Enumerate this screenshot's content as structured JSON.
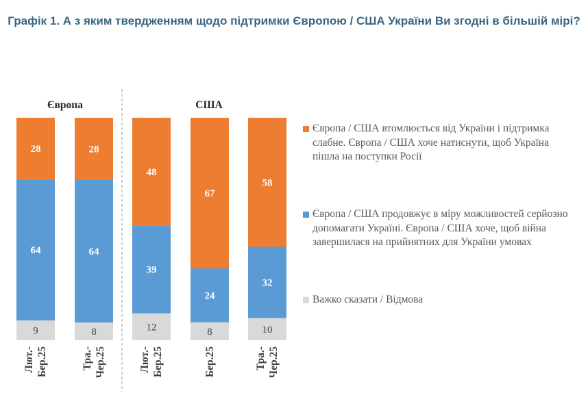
{
  "chart_data": {
    "type": "bar",
    "stacked": true,
    "title": "Графік 1. А з яким твердженням щодо підтримки Європою / США України Ви згодні в більшій мірі?",
    "groups": [
      {
        "label": "Європа",
        "categories": [
          "Лют.-Бер.25",
          "Тра.-Чер.25"
        ]
      },
      {
        "label": "США",
        "categories": [
          "Лют.-Бер.25",
          "Бер.25",
          "Тра.-Чер.25"
        ]
      }
    ],
    "categories": [
      "Лют.-Бер.25",
      "Тра.-Чер.25",
      "Лют.-Бер.25",
      "Бер.25",
      "Тра.-Чер.25"
    ],
    "series": [
      {
        "name": "Важко сказати / Відмова",
        "color": "#D9D9D9",
        "values": [
          9,
          8,
          12,
          8,
          10
        ]
      },
      {
        "name": "Європа / США продовжує в міру можливостей серйозно допомагати Україні. Європа / США хоче, щоб війна завершилася на прийнятних для України умовах",
        "color": "#5B9BD5",
        "values": [
          64,
          64,
          39,
          24,
          32
        ]
      },
      {
        "name": "Європа / США втомлюється від України і підтримка слабне. Європа / США хоче натиснути, щоб Україна пішла на поступки Росії",
        "color": "#ED7D31",
        "values": [
          28,
          28,
          48,
          67,
          58
        ]
      }
    ],
    "legend_position": "right",
    "grid": false
  }
}
